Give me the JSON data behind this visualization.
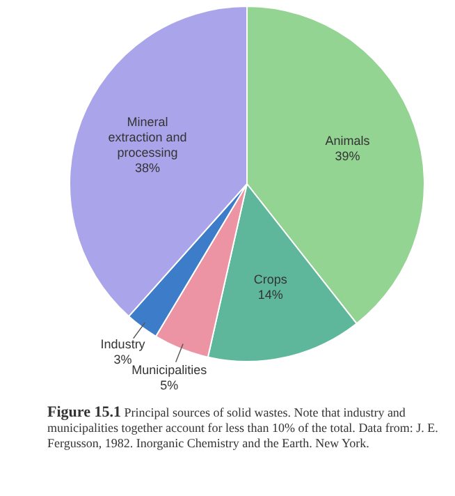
{
  "chart_data": {
    "type": "pie",
    "title": "Figure 15.1",
    "subtitle": "Principal sources of solid wastes. Note that industry and municipalities together account for less than 10% of the total.",
    "annotations": [
      "Data from: J. E. Fergusson, 1982. Inorganic Chemistry and the Earth. New York."
    ],
    "categories": [
      "Animals",
      "Crops",
      "Municipalities",
      "Industry",
      "Mineral extraction and processing"
    ],
    "values": [
      39,
      14,
      5,
      3,
      38
    ],
    "value_labels": [
      "39%",
      "14%",
      "5%",
      "3%",
      "38%"
    ],
    "colors": [
      "#93d493",
      "#5fb79b",
      "#ec94a4",
      "#3d7cc9",
      "#aaa4ea"
    ],
    "legend": false
  }
}
